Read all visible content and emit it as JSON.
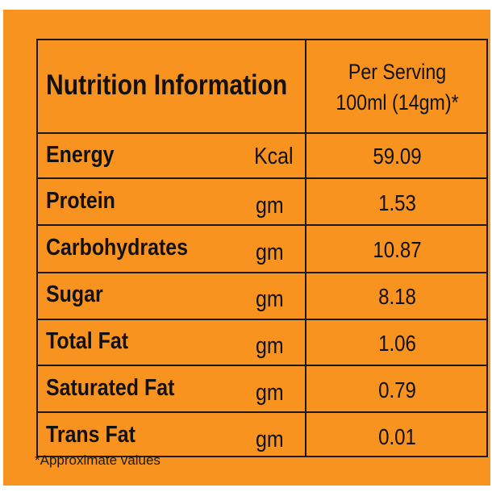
{
  "table": {
    "header": {
      "title": "Nutrition Information",
      "serving_line1": "Per Serving",
      "serving_line2": "100ml (14gm)*"
    },
    "rows": [
      {
        "label": "Energy",
        "unit": "Kcal",
        "value": "59.09"
      },
      {
        "label": "Protein",
        "unit": "gm",
        "value": "1.53"
      },
      {
        "label": "Carbohydrates",
        "unit": "gm",
        "value": "10.87"
      },
      {
        "label": "Sugar",
        "unit": "gm",
        "value": "8.18"
      },
      {
        "label": "Total Fat",
        "unit": "gm",
        "value": "1.06"
      },
      {
        "label": "Saturated Fat",
        "unit": "gm",
        "value": "0.79"
      },
      {
        "label": "Trans Fat",
        "unit": "gm",
        "value": "0.01"
      }
    ]
  },
  "footnote": "*Approximate values",
  "colors": {
    "background": "#f7931e",
    "text": "#111111",
    "border": "#1a1a1a"
  }
}
